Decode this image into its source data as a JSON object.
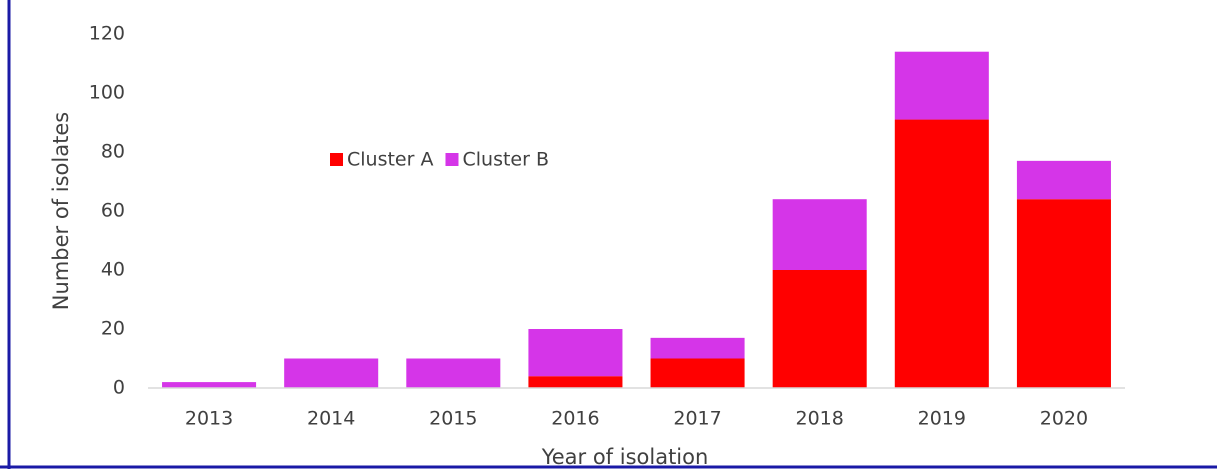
{
  "chart_data": {
    "type": "stacked_bar",
    "x_label": "Year of isolation",
    "y_label": "Number of isolates",
    "categories": [
      "2013",
      "2014",
      "2015",
      "2016",
      "2017",
      "2018",
      "2019",
      "2020"
    ],
    "series": [
      {
        "name": "Cluster A",
        "color": "#ff0000",
        "values": [
          0,
          0,
          0,
          4,
          10,
          40,
          91,
          64
        ]
      },
      {
        "name": "Cluster B",
        "color": "#d535e8",
        "values": [
          2,
          10,
          10,
          16,
          7,
          24,
          23,
          13
        ]
      }
    ],
    "ylim": [
      0,
      120
    ],
    "yticks": [
      0,
      20,
      40,
      60,
      80,
      100,
      120
    ],
    "grid": false
  }
}
